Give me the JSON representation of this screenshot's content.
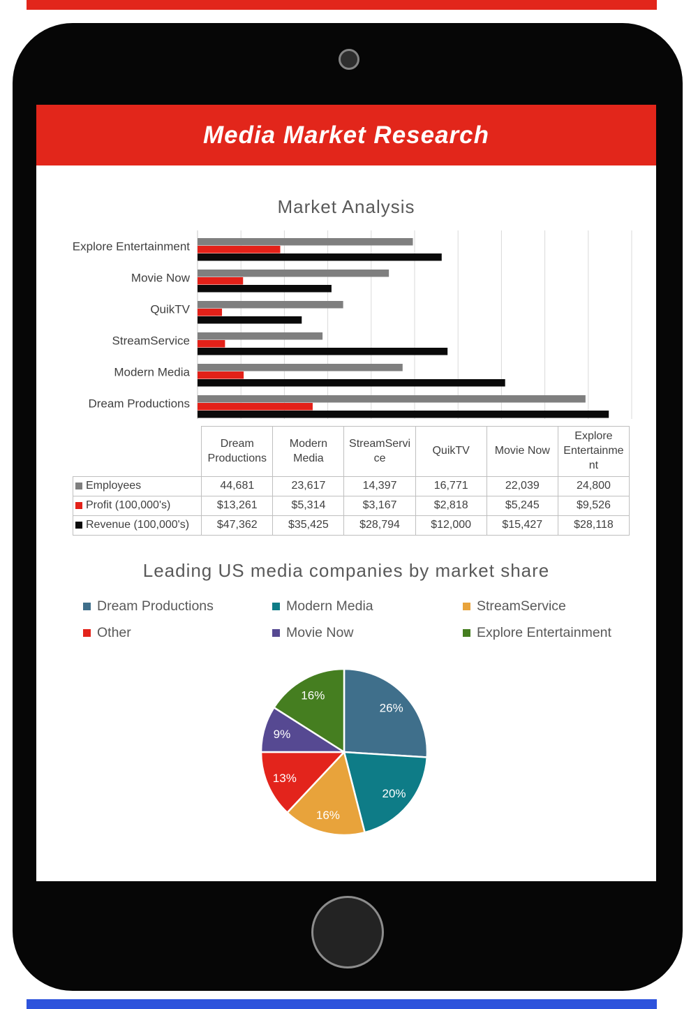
{
  "decor": {
    "top_strip_color": "#E2261B",
    "bottom_strip_color": "#2D53DC"
  },
  "device": {
    "body_color": "#060606",
    "camera_name": "front camera",
    "home_button_name": "home button"
  },
  "header": {
    "title": "Media Market Research",
    "bg_color": "#E2261B",
    "text_color": "#FFFFFF"
  },
  "bar_section": {
    "title": "Market Analysis"
  },
  "pie_section": {
    "title": "Leading US media companies by market share"
  },
  "chart_data": [
    {
      "type": "bar",
      "title": "Market Analysis",
      "orientation": "horizontal",
      "categories": [
        "Explore Entertainment",
        "Movie Now",
        "QuikTV",
        "StreamService",
        "Modern Media",
        "Dream Productions"
      ],
      "series": [
        {
          "name": "Employees",
          "color": "#7F7F7F",
          "values": [
            24800,
            22039,
            16771,
            14397,
            23617,
            44681
          ]
        },
        {
          "name": "Profit (100,000's)",
          "color": "#E32119",
          "values": [
            9526,
            5245,
            2818,
            3167,
            5314,
            13261
          ]
        },
        {
          "name": "Revenue (100,000's)",
          "color": "#0A0A0A",
          "values": [
            28118,
            15427,
            12000,
            28794,
            35425,
            47362
          ]
        }
      ],
      "xlim": [
        0,
        50000
      ],
      "gridline_step": 5000,
      "grid": true,
      "x_tick_labels_visible": false,
      "axis_label_color": "#404040",
      "gridline_color": "#D9D9D9"
    },
    {
      "type": "table",
      "column_headers": [
        "",
        "Dream Productions",
        "Modern Media",
        "StreamService",
        "QuikTV",
        "Movie Now",
        "Explore Entertainment"
      ],
      "rows": [
        {
          "marker_color": "#7F7F7F",
          "label": "Employees",
          "cells": [
            "44,681",
            "23,617",
            "14,397",
            "16,771",
            "22,039",
            "24,800"
          ]
        },
        {
          "marker_color": "#E32119",
          "label": "Profit (100,000's)",
          "cells": [
            "$13,261",
            "$5,314",
            "$3,167",
            "$2,818",
            "$5,245",
            "$9,526"
          ]
        },
        {
          "marker_color": "#0A0A0A",
          "label": "Revenue (100,000's)",
          "cells": [
            "$47,362",
            "$35,425",
            "$28,794",
            "$12,000",
            "$15,427",
            "$28,118"
          ]
        }
      ]
    },
    {
      "type": "pie",
      "title": "Leading US media companies by market share",
      "labels": [
        "Dream Productions",
        "Modern Media",
        "StreamService",
        "Other",
        "Movie Now",
        "Explore Entertainment"
      ],
      "values": [
        26,
        20,
        16,
        13,
        9,
        16
      ],
      "data_labels": [
        "26%",
        "20%",
        "16%",
        "13%",
        "9%",
        "16%"
      ],
      "colors": [
        "#3F6F8B",
        "#0E7C87",
        "#E8A33B",
        "#E3241C",
        "#564992",
        "#457E20"
      ],
      "data_label_color": "#FFFFFF",
      "start_angle_from_top_deg": 0,
      "direction": "clockwise",
      "legend_position": "top"
    }
  ]
}
